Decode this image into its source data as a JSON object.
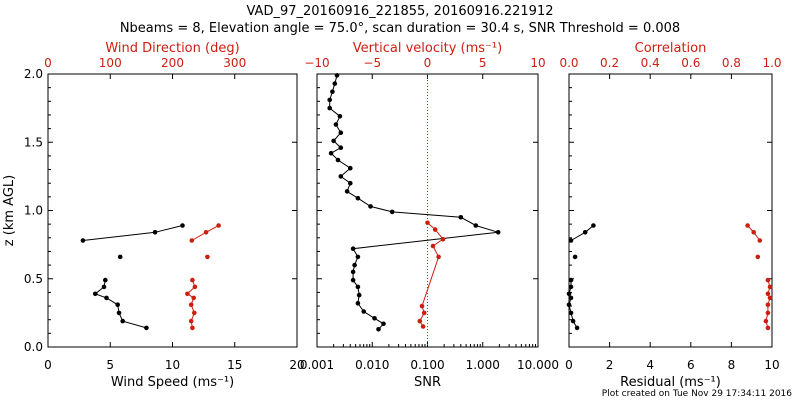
{
  "figure": {
    "title_line1": "VAD_97_20160916_221855, 20160916.221912",
    "title_line2": "Nbeams = 8, Elevation angle = 75.0°, scan duration = 30.4 s, SNR Threshold = 0.008",
    "footer": "Plot created on Tue Nov 29 17:34:11 2016",
    "colors": {
      "primary": "#000000",
      "secondary": "#cc1f10"
    }
  },
  "chart_data": [
    {
      "type": "scatter",
      "panel": "wind",
      "xlabel": "Wind Speed (ms⁻¹)",
      "xlim": [
        0,
        20
      ],
      "xticks": [
        "0",
        "5",
        "10",
        "15",
        "20"
      ],
      "x2label": "Wind Direction (deg)",
      "x2lim": [
        0,
        400
      ],
      "x2ticks": [
        "0",
        "100",
        "200",
        "300"
      ],
      "ylabel": "z (km AGL)",
      "ylim": [
        0,
        2
      ],
      "yticks": [
        "0.0",
        "0.5",
        "1.0",
        "1.5",
        "2.0"
      ],
      "series": [
        {
          "name": "Wind Speed",
          "axis": "bottom",
          "color": "#000000",
          "segments": [
            [
              [
                10.8,
                0.89
              ],
              [
                8.6,
                0.84
              ],
              [
                2.8,
                0.78
              ]
            ],
            [
              [
                5.8,
                0.66
              ]
            ],
            [
              [
                4.6,
                0.49
              ],
              [
                4.5,
                0.44
              ],
              [
                3.8,
                0.39
              ],
              [
                4.7,
                0.36
              ],
              [
                5.6,
                0.31
              ],
              [
                5.7,
                0.25
              ],
              [
                6.0,
                0.19
              ],
              [
                7.9,
                0.14
              ]
            ]
          ]
        },
        {
          "name": "Wind Direction",
          "axis": "top",
          "color": "#cc1f10",
          "segments": [
            [
              [
                274,
                0.89
              ],
              [
                254,
                0.84
              ],
              [
                231,
                0.78
              ]
            ],
            [
              [
                256,
                0.66
              ]
            ],
            [
              [
                232,
                0.49
              ],
              [
                236,
                0.44
              ],
              [
                224,
                0.39
              ],
              [
                234,
                0.36
              ],
              [
                230,
                0.31
              ],
              [
                235,
                0.25
              ],
              [
                230,
                0.19
              ],
              [
                232,
                0.14
              ]
            ]
          ]
        }
      ]
    },
    {
      "type": "line",
      "panel": "snr",
      "xlabel": "SNR",
      "xscale": "log",
      "xlim": [
        0.001,
        10
      ],
      "xticks": [
        "0.001",
        "0.010",
        "0.100",
        "1.000",
        "10.000"
      ],
      "x2label": "Vertical velocity (ms⁻¹)",
      "x2lim": [
        -10,
        10
      ],
      "x2ticks": [
        "−10",
        "−5",
        "0",
        "5",
        "10"
      ],
      "reference_line": {
        "axis": "top",
        "value": 0,
        "style": "dotted"
      },
      "series": [
        {
          "name": "SNR",
          "axis": "bottom",
          "color": "#000000",
          "points": [
            [
              0.0023,
              1.99
            ],
            [
              0.0021,
              1.93
            ],
            [
              0.0019,
              1.87
            ],
            [
              0.0017,
              1.81
            ],
            [
              0.0017,
              1.75
            ],
            [
              0.0026,
              1.69
            ],
            [
              0.0022,
              1.63
            ],
            [
              0.0027,
              1.57
            ],
            [
              0.002,
              1.51
            ],
            [
              0.0027,
              1.46
            ],
            [
              0.0018,
              1.42
            ],
            [
              0.0024,
              1.37
            ],
            [
              0.004,
              1.31
            ],
            [
              0.0027,
              1.25
            ],
            [
              0.004,
              1.2
            ],
            [
              0.0035,
              1.14
            ],
            [
              0.0055,
              1.09
            ],
            [
              0.0093,
              1.03
            ],
            [
              0.023,
              0.99
            ],
            [
              0.4,
              0.95
            ],
            [
              0.75,
              0.89
            ],
            [
              1.9,
              0.84
            ],
            [
              0.0045,
              0.72
            ],
            [
              0.0055,
              0.66
            ],
            [
              0.0048,
              0.6
            ],
            [
              0.0045,
              0.55
            ],
            [
              0.0045,
              0.49
            ],
            [
              0.0055,
              0.44
            ],
            [
              0.0058,
              0.38
            ],
            [
              0.0055,
              0.32
            ],
            [
              0.007,
              0.26
            ],
            [
              0.011,
              0.21
            ],
            [
              0.016,
              0.17
            ],
            [
              0.013,
              0.13
            ]
          ]
        },
        {
          "name": "Vertical velocity",
          "axis": "top",
          "color": "#cc1f10",
          "points": [
            [
              0.0,
              0.91
            ],
            [
              0.7,
              0.86
            ],
            [
              1.4,
              0.79
            ],
            [
              0.5,
              0.74
            ],
            [
              1.0,
              0.66
            ],
            [
              -0.5,
              0.3
            ],
            [
              -0.3,
              0.25
            ],
            [
              -0.7,
              0.19
            ],
            [
              -0.4,
              0.15
            ]
          ]
        }
      ]
    },
    {
      "type": "line",
      "panel": "residual",
      "xlabel": "Residual (ms⁻¹)",
      "xlim": [
        0,
        10
      ],
      "xticks": [
        "0",
        "2",
        "4",
        "6",
        "8",
        "10"
      ],
      "x2label": "Correlation",
      "x2lim": [
        0,
        1
      ],
      "x2ticks": [
        "0.0",
        "0.2",
        "0.4",
        "0.6",
        "0.8",
        "1.0"
      ],
      "series": [
        {
          "name": "Residual",
          "axis": "bottom",
          "color": "#000000",
          "segments": [
            [
              [
                1.2,
                0.89
              ],
              [
                0.8,
                0.84
              ],
              [
                0.1,
                0.78
              ]
            ],
            [
              [
                0.3,
                0.66
              ]
            ],
            [
              [
                0.1,
                0.49
              ],
              [
                0.1,
                0.44
              ],
              [
                0.0,
                0.39
              ],
              [
                0.1,
                0.36
              ],
              [
                0.0,
                0.31
              ],
              [
                0.1,
                0.25
              ],
              [
                0.2,
                0.19
              ],
              [
                0.4,
                0.14
              ]
            ]
          ]
        },
        {
          "name": "Correlation",
          "axis": "top",
          "color": "#cc1f10",
          "segments": [
            [
              [
                0.88,
                0.89
              ],
              [
                0.91,
                0.84
              ],
              [
                0.94,
                0.78
              ]
            ],
            [
              [
                0.93,
                0.66
              ]
            ],
            [
              [
                0.98,
                0.49
              ],
              [
                0.99,
                0.44
              ],
              [
                0.98,
                0.39
              ],
              [
                0.99,
                0.36
              ],
              [
                0.98,
                0.31
              ],
              [
                0.98,
                0.25
              ],
              [
                0.97,
                0.19
              ],
              [
                0.98,
                0.14
              ]
            ]
          ]
        }
      ]
    }
  ]
}
